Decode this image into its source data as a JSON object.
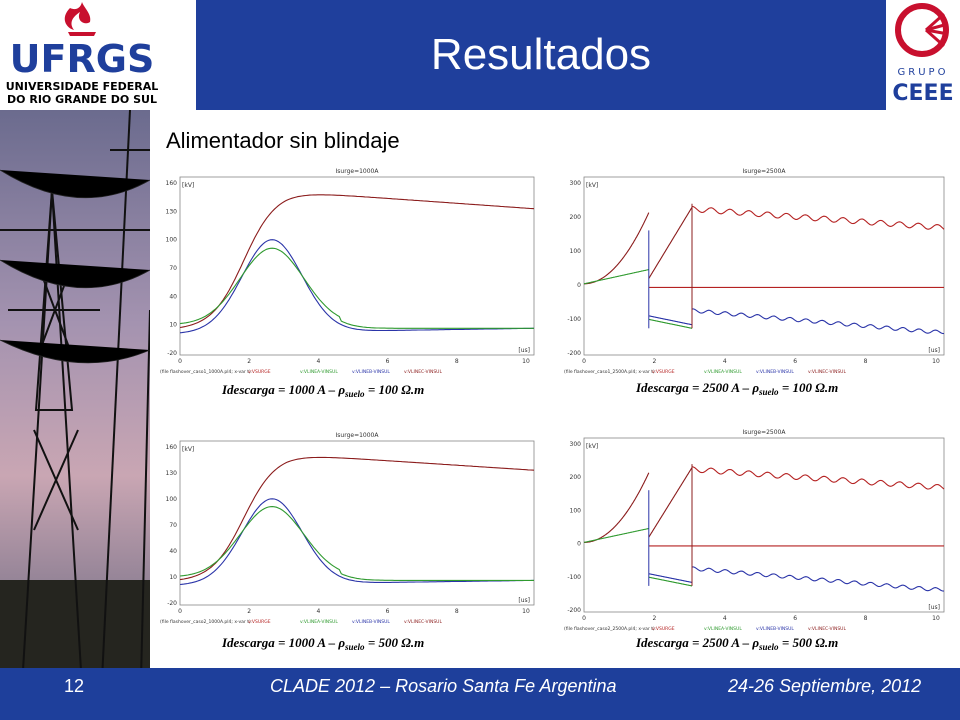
{
  "header": {
    "title": "Resultados",
    "logo_left_text": "UFRGS",
    "logo_left_sub1": "UNIVERSIDADE FEDERAL",
    "logo_left_sub2": "DO RIO GRANDE DO SUL",
    "logo_right_top": "GRUPO",
    "logo_right_bottom": "CEEE"
  },
  "subtitle": "Alimentador sin blindaje",
  "footer": {
    "slide_number": "12",
    "conference": "CLADE 2012 – Rosario Santa Fe Argentina",
    "dates": "24-26 Septiembre, 2012"
  },
  "colors": {
    "title_band": "#1f3f9c",
    "footer_band": "#1e3f9b",
    "surge": "#8b1c1c",
    "line_a": "#2f9a2f",
    "line_b": "#2a34a8",
    "line_c": "#b52222"
  },
  "plots": [
    {
      "plot_title": "Isurge=1000A",
      "unit": "[kV]",
      "xunit": "[us]",
      "yticks": [
        "160",
        "130",
        "100",
        "70",
        "40",
        "10",
        "-20"
      ],
      "xticks": [
        "0",
        "2",
        "4",
        "6",
        "8",
        "10"
      ],
      "file": "(file flashover_caso1_1000A.pl4; x-var t)",
      "legend": [
        "v:VSURGE",
        "v:VLINEA-VINSUL",
        "v:VLINEB-VINSUL",
        "v:VLINEC-VINSUL"
      ],
      "caption_pre": "Idescarga",
      "caption_mid": " = 1000 A – ρ",
      "caption_sub": "suelo",
      "caption_post": " = 100 Ω.m"
    },
    {
      "plot_title": "Isurge=2500A",
      "unit": "[kV]",
      "xunit": "[us]",
      "yticks": [
        "300",
        "200",
        "100",
        "0",
        "-100",
        "-200"
      ],
      "xticks": [
        "0",
        "2",
        "4",
        "6",
        "8",
        "10"
      ],
      "file": "(file flashover_caso1_2500A.pl4; x-var t)",
      "legend": [
        "v:VSURGE",
        "v:VLINEA-VINSUL",
        "v:VLINEB-VINSUL",
        "v:VLINEC-VINSUL"
      ],
      "caption_pre": "Idescarga",
      "caption_mid": " = 2500 A – ρ",
      "caption_sub": "suelo",
      "caption_post": " = 100 Ω.m"
    },
    {
      "plot_title": "Isurge=1000A",
      "unit": "[kV]",
      "xunit": "[us]",
      "yticks": [
        "160",
        "130",
        "100",
        "70",
        "40",
        "10",
        "-20"
      ],
      "xticks": [
        "0",
        "2",
        "4",
        "6",
        "8",
        "10"
      ],
      "file": "(file flashover_caso2_1000A.pl4; x-var t)",
      "legend": [
        "v:VSURGE",
        "v:VLINEA-VINSUL",
        "v:VLINEB-VINSUL",
        "v:VLINEC-VINSUL"
      ],
      "caption_pre": "Idescarga",
      "caption_mid": " = 1000 A – ρ",
      "caption_sub": "suelo",
      "caption_post": " = 500 Ω.m"
    },
    {
      "plot_title": "Isurge=2500A",
      "unit": "[kV]",
      "xunit": "[us]",
      "yticks": [
        "300",
        "200",
        "100",
        "0",
        "-100",
        "-200"
      ],
      "xticks": [
        "0",
        "2",
        "4",
        "6",
        "8",
        "10"
      ],
      "file": "(file flashover_caso2_2500A.pl4; x-var t)",
      "legend": [
        "v:VSURGE",
        "v:VLINEA-VINSUL",
        "v:VLINEB-VINSUL",
        "v:VLINEC-VINSUL"
      ],
      "caption_pre": "Idescarga",
      "caption_mid": " = 2500 A – ρ",
      "caption_sub": "suelo",
      "caption_post": " = 500 Ω.m"
    }
  ]
}
